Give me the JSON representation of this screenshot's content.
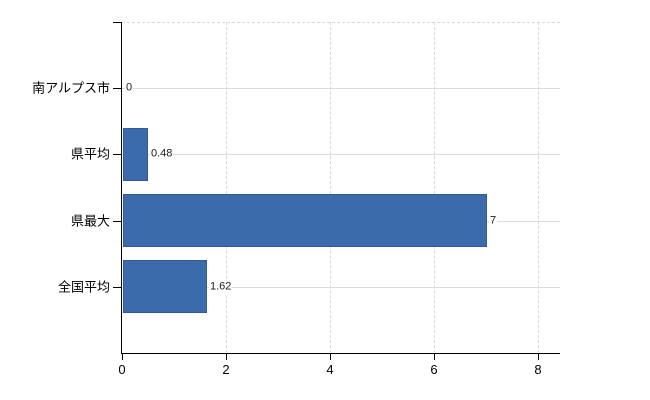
{
  "chart_data": {
    "type": "bar",
    "orientation": "horizontal",
    "categories": [
      "南アルプス市",
      "県平均",
      "県最大",
      "全国平均"
    ],
    "values": [
      0,
      0.48,
      7,
      1.62
    ],
    "value_labels": [
      "0",
      "0.48",
      "7",
      "1.62"
    ],
    "x_ticks": [
      0,
      2,
      4,
      6,
      8
    ],
    "x_tick_labels": [
      "0",
      "2",
      "4",
      "6",
      "8"
    ],
    "xlim": [
      0,
      8.42
    ],
    "grid": true,
    "legend": false,
    "gridline_style": {
      "horizontal": "solid",
      "vertical": "dashed",
      "plot_top_border": "dashed"
    },
    "colors": {
      "bar": "#3c6bac",
      "axis": "#000000",
      "gridline": "#d9d9d9",
      "text": "#000000",
      "value_text": "#1a1a1a",
      "background": "#ffffff"
    }
  }
}
